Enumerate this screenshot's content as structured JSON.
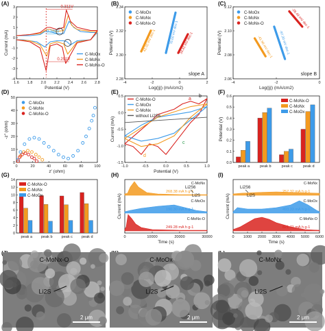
{
  "colors": {
    "c_moox": "#3d9be9",
    "c_monx": "#f39a1f",
    "c_monx_o": "#d9231f",
    "cyan_label": "#2ea8e0"
  },
  "legend_labels": {
    "c_moox": "C-MoOx",
    "c_monx": "C-MoNx",
    "c_monx_o": "C-MoNx-O",
    "without": "without Li2S6"
  },
  "panel_letters": {
    "A": "(A)",
    "B": "(B)",
    "C": "(C)",
    "D": "(D)",
    "E": "(E)",
    "F": "(F)",
    "G": "(G)",
    "H": "(H)",
    "I": "(I)",
    "J": "(J)",
    "K": "(K)",
    "L": "(L)"
  },
  "chart_data": [
    {
      "panel": "A",
      "type": "line",
      "xlabel": "Potential (V)",
      "ylabel": "Current (mA)",
      "xlim": [
        1.6,
        2.8
      ],
      "ylim": [
        -4,
        3
      ],
      "xticks": [
        "1.6",
        "1.8",
        "2.0",
        "2.2",
        "2.4",
        "2.6",
        "2.8"
      ],
      "yticks": [
        "-4",
        "-3",
        "-2",
        "-1",
        "0",
        "1",
        "2",
        "3"
      ],
      "annotations": [
        "0.311V",
        "0.291V",
        "0.348V"
      ],
      "series": [
        {
          "name": "C-MoOx",
          "x": [
            1.6,
            1.8,
            1.95,
            2.02,
            2.08,
            2.2,
            2.3,
            2.38,
            2.45,
            2.55,
            2.7,
            2.8,
            2.7,
            2.5,
            2.4,
            2.35,
            2.3,
            2.2,
            2.1,
            2.02,
            1.9,
            1.7,
            1.6
          ],
          "y": [
            0.2,
            0.2,
            0.3,
            0.6,
            0.6,
            0.4,
            0.4,
            1.6,
            1.0,
            0.6,
            0.5,
            0.5,
            -0.2,
            -0.3,
            -0.7,
            -0.4,
            -0.3,
            -0.3,
            -0.4,
            -0.9,
            -0.4,
            -0.2,
            -0.2
          ]
        },
        {
          "name": "C-MoNx",
          "x": [
            1.6,
            1.8,
            1.95,
            2.05,
            2.1,
            2.2,
            2.3,
            2.37,
            2.42,
            2.5,
            2.7,
            2.8,
            2.7,
            2.5,
            2.36,
            2.3,
            2.2,
            2.1,
            2.05,
            1.95,
            1.8,
            1.6
          ],
          "y": [
            0.2,
            0.3,
            0.4,
            0.8,
            0.8,
            0.6,
            0.7,
            2.2,
            1.2,
            0.8,
            0.6,
            0.6,
            -0.2,
            -0.4,
            -1.6,
            -0.6,
            -0.4,
            -0.6,
            -1.8,
            -0.7,
            -0.3,
            -0.2
          ]
        },
        {
          "name": "C-MoNx-O",
          "x": [
            1.6,
            1.8,
            1.95,
            2.05,
            2.1,
            2.2,
            2.3,
            2.34,
            2.4,
            2.5,
            2.7,
            2.8,
            2.7,
            2.5,
            2.33,
            2.28,
            2.2,
            2.1,
            2.04,
            1.95,
            1.8,
            1.6
          ],
          "y": [
            0.2,
            0.3,
            0.5,
            1.0,
            1.0,
            0.8,
            1.0,
            2.7,
            1.6,
            1.0,
            0.7,
            0.7,
            -0.2,
            -0.5,
            -2.5,
            -0.9,
            -0.6,
            -0.8,
            -3.2,
            -1.0,
            -0.4,
            -0.2
          ]
        }
      ]
    },
    {
      "panel": "B",
      "type": "line",
      "title": "slope A",
      "xlabel": "Log(|j|) (mA/cm2)",
      "ylabel": "Potential (V)",
      "xlim": [
        -4,
        2
      ],
      "ylim": [
        2.26,
        2.36
      ],
      "xticks": [
        "-4",
        "-2",
        "0",
        "2"
      ],
      "yticks": [
        "2.28",
        "2.30",
        "2.32",
        "2.34"
      ],
      "legend": [
        "C-MoOx",
        "C-MoNx",
        "C-MoNx-O"
      ],
      "series": [
        {
          "name": "C-MoOx",
          "slope_label": "76.60 mV dec-1",
          "x": [
            -1.0,
            -0.3
          ],
          "y": [
            2.296,
            2.352
          ]
        },
        {
          "name": "C-MoNx",
          "slope_label": "42.02 mV dec-1",
          "x": [
            -2.8,
            -2.1
          ],
          "y": [
            2.298,
            2.327
          ]
        },
        {
          "name": "C-MoNx-O",
          "slope_label": "34.41 mV dec-1",
          "x": [
            -0.1,
            0.6
          ],
          "y": [
            2.296,
            2.322
          ]
        }
      ]
    },
    {
      "panel": "C",
      "type": "line",
      "title": "slope B",
      "xlabel": "Log(|j|) (mA/cm2)",
      "ylabel": "Potential (V)",
      "xlim": [
        -4,
        0
      ],
      "ylim": [
        2.06,
        2.14
      ],
      "xticks": [
        "-4",
        "-2",
        "0"
      ],
      "yticks": [
        "2.06",
        "2.08",
        "2.10",
        "2.12"
      ],
      "legend": [
        "C-MoOx",
        "C-MoNx",
        "C-MoNx-O"
      ],
      "series": [
        {
          "name": "C-MoOx",
          "slope_label": "-97.20 mV dec-1",
          "x": [
            -2.1,
            -1.6
          ],
          "y": [
            2.118,
            2.082
          ]
        },
        {
          "name": "C-MoNx",
          "slope_label": "-41.96 mV dec-1",
          "x": [
            -3.0,
            -2.5
          ],
          "y": [
            2.105,
            2.085
          ]
        },
        {
          "name": "C-MoNx-O",
          "slope_label": "-28.49 mV dec-1",
          "x": [
            -1.4,
            -0.8
          ],
          "y": [
            2.135,
            2.118
          ]
        }
      ]
    },
    {
      "panel": "D",
      "type": "scatter",
      "xlabel": "z' (ohm)",
      "ylabel": "-z'' (ohm)",
      "xlim": [
        0,
        100
      ],
      "ylim": [
        0,
        50
      ],
      "xticks": [
        "0",
        "20",
        "40",
        "60",
        "80",
        "100"
      ],
      "yticks": [
        "0",
        "10",
        "20",
        "30",
        "40",
        "50"
      ],
      "legend": [
        "C-MoOx",
        "C-MoNx",
        "C-MoNx-O"
      ],
      "series": [
        {
          "name": "C-MoOx",
          "x": [
            2,
            5,
            10,
            16,
            22,
            28,
            34,
            40,
            46,
            52,
            58,
            64,
            70,
            76,
            82,
            86,
            90,
            93,
            95,
            97
          ],
          "y": [
            2,
            8,
            14,
            18,
            19,
            18,
            15,
            12,
            9,
            6,
            4,
            3,
            5,
            9,
            15,
            20,
            26,
            32,
            36,
            42
          ]
        },
        {
          "name": "C-MoNx",
          "x": [
            2,
            5,
            9,
            14,
            19,
            24,
            28,
            32
          ],
          "y": [
            1,
            5,
            8,
            9,
            8,
            6,
            4,
            2
          ]
        },
        {
          "name": "C-MoNx-O",
          "x": [
            2,
            4,
            7,
            11,
            15,
            19,
            22,
            25
          ],
          "y": [
            1,
            4,
            6,
            7,
            6,
            4,
            3,
            1
          ]
        }
      ]
    },
    {
      "panel": "E",
      "type": "line",
      "xlabel": "Potential (V)",
      "ylabel": "Current (mA)",
      "xlim": [
        -1.0,
        1.0
      ],
      "ylim": [
        -1.6,
        0.9
      ],
      "xticks": [
        "-1.0",
        "-0.5",
        "0.0",
        "0.5",
        "1.0"
      ],
      "yticks": [
        "-1.5",
        "-1.0",
        "-0.5",
        "0.0",
        "0.5"
      ],
      "legend": [
        "C-MoNx-O",
        "C-MoOx",
        "C-MoNx",
        "without Li2S6"
      ],
      "annotations": [
        "a",
        "b",
        "c",
        "d"
      ],
      "series": [
        {
          "name": "C-MoNx-O",
          "x": [
            -1.0,
            -0.7,
            -0.4,
            -0.2,
            0.0,
            0.2,
            0.4,
            0.6,
            0.8,
            1.0,
            0.8,
            0.6,
            0.4,
            0.2,
            0.0,
            -0.2,
            -0.4,
            -0.6,
            -0.8,
            -1.0
          ],
          "y": [
            -0.9,
            -0.5,
            -0.1,
            0.2,
            0.3,
            0.4,
            0.6,
            0.7,
            0.6,
            0.8,
            0.2,
            -0.1,
            -0.5,
            -0.9,
            -1.3,
            -1.0,
            -0.9,
            -1.3,
            -1.0,
            -0.9
          ]
        },
        {
          "name": "C-MoOx",
          "x": [
            -1.0,
            -0.6,
            -0.2,
            0.2,
            0.6,
            1.0,
            0.6,
            0.2,
            -0.2,
            -0.6,
            -1.0
          ],
          "y": [
            -0.6,
            -0.2,
            0.1,
            0.2,
            0.3,
            0.5,
            0.0,
            -0.5,
            -0.7,
            -0.8,
            -0.6
          ]
        },
        {
          "name": "C-MoNx",
          "x": [
            -1.0,
            -0.6,
            -0.2,
            0.2,
            0.6,
            1.0,
            0.6,
            0.2,
            -0.2,
            -0.6,
            -1.0
          ],
          "y": [
            -0.7,
            -0.3,
            0.1,
            0.3,
            0.5,
            0.6,
            0.1,
            -0.6,
            -0.9,
            -1.0,
            -0.7
          ]
        },
        {
          "name": "without Li2S6",
          "x": [
            -1.0,
            0.0,
            1.0,
            0.0,
            -1.0
          ],
          "y": [
            -0.1,
            0.0,
            0.1,
            0.0,
            -0.1
          ]
        }
      ]
    },
    {
      "panel": "F",
      "type": "bar",
      "ylabel": "Potential (V)",
      "ylim": [
        0.0,
        0.6
      ],
      "yticks": [
        "0.0",
        "0.1",
        "0.2",
        "0.3",
        "0.4",
        "0.5",
        "0.6"
      ],
      "categories": [
        "peak a",
        "peak b",
        "peak c",
        "peak d"
      ],
      "legend": [
        "C-MoNx-O",
        "C-MoNx",
        "C-MoOx"
      ],
      "series": [
        {
          "name": "C-MoNx-O",
          "values": [
            0.05,
            0.4,
            0.07,
            0.3
          ]
        },
        {
          "name": "C-MoNx",
          "values": [
            0.11,
            0.45,
            0.1,
            0.46
          ]
        },
        {
          "name": "C-MoOx",
          "values": [
            0.19,
            0.49,
            0.12,
            0.52
          ]
        }
      ]
    },
    {
      "panel": "G",
      "type": "bar",
      "ylim": [
        0,
        14
      ],
      "yticks": [
        "0",
        "2",
        "4",
        "6",
        "8",
        "10",
        "12",
        "14"
      ],
      "categories": [
        "peak a",
        "peak b",
        "peak c",
        "peak d"
      ],
      "legend": [
        "C-MoNx-O",
        "C-MoNx",
        "C-MoOx"
      ],
      "series": [
        {
          "name": "C-MoNx-O",
          "values": [
            10.2,
            9.8,
            9.7,
            10.6
          ]
        },
        {
          "name": "C-MoNx",
          "values": [
            6.5,
            7.5,
            7.4,
            7.7
          ]
        },
        {
          "name": "C-MoOx",
          "values": [
            3.3,
            3.1,
            3.3,
            3.3
          ]
        }
      ]
    },
    {
      "panel": "H",
      "type": "area",
      "xlabel": "Time (s)",
      "ylabel": "Current (mA)",
      "xlim": [
        0,
        30000
      ],
      "xticks": [
        "0",
        "10000",
        "20000",
        "30000"
      ],
      "annotations": [
        "268.38 mA h g-1",
        "190.30 mA h g-1",
        "249.28 mA h g-1",
        "Li2S6",
        "Li2S"
      ],
      "series": [
        {
          "name": "C-MoNx",
          "x": [
            0,
            1000,
            2000,
            3500,
            5000,
            8000,
            12000,
            20000,
            30000
          ],
          "y": [
            0.1,
            0.15,
            0.6,
            1.0,
            0.6,
            0.2,
            0.1,
            0.05,
            0.05
          ]
        },
        {
          "name": "C-MoOx",
          "x": [
            0,
            2000,
            6000,
            12000,
            18000,
            22000,
            26000,
            30000
          ],
          "y": [
            0.1,
            0.2,
            0.35,
            0.5,
            0.6,
            0.4,
            0.2,
            0.1
          ]
        },
        {
          "name": "C-MoNx-O",
          "x": [
            0,
            500,
            1200,
            2500,
            4000,
            6000,
            10000,
            20000,
            30000
          ],
          "y": [
            0.1,
            0.3,
            1.2,
            0.9,
            0.5,
            0.25,
            0.1,
            0.05,
            0.05
          ]
        }
      ]
    },
    {
      "panel": "I",
      "type": "area",
      "xlabel": "Time (s)",
      "ylabel": "Current (mA)",
      "xlim": [
        0,
        6000
      ],
      "xticks": [
        "0",
        "1000",
        "2000",
        "3000",
        "4000",
        "5000",
        "6000"
      ],
      "annotations": [
        "257.32 mA h g-1",
        "493.33 mA h g-1",
        "821.71 mA h g-1",
        "Li2S6",
        "Li2S"
      ],
      "series": [
        {
          "name": "C-MoNx",
          "x": [
            0,
            500,
            1500,
            3000,
            4500,
            6000
          ],
          "y": [
            0.1,
            0.15,
            0.2,
            0.25,
            0.2,
            0.15
          ]
        },
        {
          "name": "C-MoOx",
          "x": [
            0,
            300,
            1000,
            2000,
            3000,
            4000,
            4600,
            5200,
            5800,
            6000
          ],
          "y": [
            0.1,
            0.4,
            0.3,
            0.3,
            0.4,
            0.6,
            0.9,
            0.6,
            0.2,
            0.1
          ]
        },
        {
          "name": "C-MoNx-O",
          "x": [
            0,
            500,
            1000,
            1500,
            2000,
            2500,
            3000,
            4000,
            5000,
            6000
          ],
          "y": [
            0.1,
            0.3,
            0.6,
            0.9,
            1.0,
            0.85,
            0.6,
            0.3,
            0.1,
            0.05
          ]
        }
      ]
    }
  ],
  "sem": [
    {
      "panel": "J",
      "title": "C-MoNx-O",
      "label": "Li2S",
      "scale": "2 μm"
    },
    {
      "panel": "K",
      "title": "C-MoOx",
      "label": "Li2S",
      "scale": "2 μm"
    },
    {
      "panel": "L",
      "title": "C-MoNx",
      "label": "Li2S",
      "scale": "2 μm"
    }
  ]
}
